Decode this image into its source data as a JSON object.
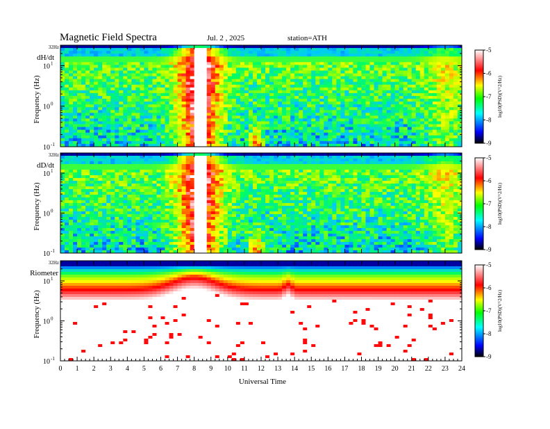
{
  "chart_data": {
    "type": "heatmap",
    "title": "Magnetic  Field  Spectra",
    "date": "Jul.  2  , 2025",
    "station": "station=ATH",
    "xlabel": "Universal Time",
    "x_ticks": [
      "0",
      "1",
      "2",
      "3",
      "4",
      "5",
      "6",
      "7",
      "8",
      "9",
      "10",
      "11",
      "12",
      "13",
      "14",
      "15",
      "16",
      "17",
      "18",
      "19",
      "20",
      "21",
      "22",
      "23",
      "24"
    ],
    "xlim": [
      0,
      24
    ],
    "panels": [
      {
        "name": "dH/dt",
        "ylabel": "Frequency  (Hz)",
        "top_label": "32Hz",
        "ylim_log10": [
          -1,
          1.505
        ],
        "yticks": [
          {
            "base": "10",
            "exp": "1",
            "log": 1
          },
          {
            "base": "10",
            "exp": "0",
            "log": 0
          },
          {
            "base": "10",
            "exp": "-1",
            "log": -1
          }
        ],
        "colorbar": {
          "label": "log10(PSD)(V^2/Hz)",
          "ticks": [
            "-5",
            "-6",
            "-7",
            "-8",
            "-9"
          ],
          "range": [
            -9,
            -5
          ]
        }
      },
      {
        "name": "dD/dt",
        "ylabel": "Frequency  (Hz)",
        "top_label": "32Hz",
        "ylim_log10": [
          -1,
          1.505
        ],
        "yticks": [
          {
            "base": "10",
            "exp": "1",
            "log": 1
          },
          {
            "base": "10",
            "exp": "0",
            "log": 0
          },
          {
            "base": "10",
            "exp": "-1",
            "log": -1
          }
        ],
        "colorbar": {
          "label": "log10(PSD)(V^2/Hz)",
          "ticks": [
            "-5",
            "-6",
            "-7",
            "-8",
            "-9"
          ],
          "range": [
            -9,
            -5
          ]
        }
      },
      {
        "name": "Riometer",
        "ylabel": "Frequency  (Hz)",
        "top_label": "32Hz",
        "ylim_log10": [
          -1,
          1.505
        ],
        "yticks": [
          {
            "base": "10",
            "exp": "1",
            "log": 1
          },
          {
            "base": "10",
            "exp": "0",
            "log": 0
          },
          {
            "base": "10",
            "exp": "-1",
            "log": -1
          }
        ],
        "colorbar": {
          "label": "log10(PSD)(V^2/Hz)",
          "ticks": [
            "-5",
            "-6",
            "-7",
            "-8",
            "-9"
          ],
          "range": [
            -9,
            -5
          ]
        }
      }
    ]
  },
  "colors": {
    "scale": [
      "#000060",
      "#0000ff",
      "#00c8ff",
      "#00ff60",
      "#a0ff00",
      "#ffff00",
      "#ff8000",
      "#ff0000",
      "#ffffff"
    ]
  }
}
